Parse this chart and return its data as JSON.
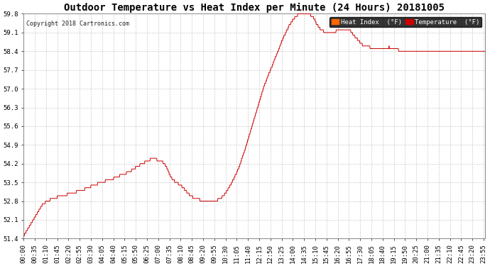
{
  "title": "Outdoor Temperature vs Heat Index per Minute (24 Hours) 20181005",
  "copyright": "Copyright 2018 Cartronics.com",
  "legend_labels": [
    "Heat Index  (°F)",
    "Temperature  (°F)"
  ],
  "legend_facecolors": [
    "#ff6600",
    "#cc0000"
  ],
  "line_color": "#cc0000",
  "background_color": "#ffffff",
  "grid_color": "#cccccc",
  "ylim": [
    51.4,
    59.8
  ],
  "yticks": [
    51.4,
    52.1,
    52.8,
    53.5,
    54.2,
    54.9,
    55.6,
    56.3,
    57.0,
    57.7,
    58.4,
    59.1,
    59.8
  ],
  "xlabel_rotation": 90,
  "title_fontsize": 10,
  "tick_fontsize": 6.5,
  "fig_bg": "#ffffff",
  "num_points": 1440,
  "xtick_step": 35
}
